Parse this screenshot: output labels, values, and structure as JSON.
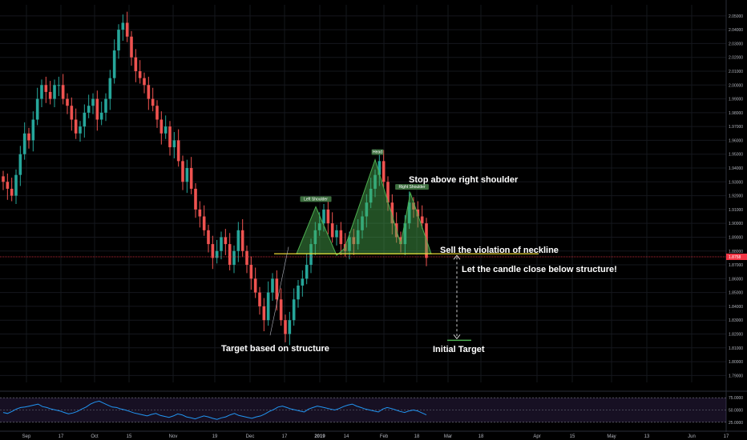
{
  "chart_data": {
    "type": "candlestick",
    "title": "",
    "price_axis": {
      "ylim": [
        1.785,
        2.058
      ],
      "ticks": [
        "2.05000",
        "2.04000",
        "2.03000",
        "2.02000",
        "2.01000",
        "2.00000",
        "1.99000",
        "1.98000",
        "1.97000",
        "1.96000",
        "1.95000",
        "1.94000",
        "1.93000",
        "1.92000",
        "1.91000",
        "1.90000",
        "1.89000",
        "1.88000",
        "1.87000",
        "1.86000",
        "1.85000",
        "1.84000",
        "1.83000",
        "1.82000",
        "1.81000",
        "1.80000",
        "1.79000"
      ],
      "last_price_label": "1.8758",
      "last_price": 1.8758
    },
    "time_axis": {
      "ticks": [
        "Sep",
        "17",
        "Oct",
        "15",
        "Nov",
        "19",
        "Dec",
        "17",
        "2019",
        "14",
        "Feb",
        "18",
        "Mar",
        "18",
        "Apr",
        "15",
        "May",
        "13",
        "Jun",
        "17"
      ]
    },
    "ohlc_close_path": [
      1.93,
      1.925,
      1.92,
      1.935,
      1.95,
      1.965,
      1.96,
      1.975,
      1.99,
      2.0,
      1.995,
      1.99,
      2.0,
      2.0,
      1.99,
      1.985,
      1.975,
      1.965,
      1.97,
      1.98,
      1.985,
      1.99,
      1.975,
      1.98,
      1.99,
      2.005,
      2.025,
      2.04,
      2.045,
      2.035,
      2.02,
      2.01,
      2.005,
      2.0,
      1.99,
      1.985,
      1.975,
      1.965,
      1.97,
      1.955,
      1.96,
      1.945,
      1.93,
      1.94,
      1.925,
      1.91,
      1.905,
      1.895,
      1.885,
      1.875,
      1.88,
      1.89,
      1.885,
      1.87,
      1.88,
      1.895,
      1.88,
      1.87,
      1.86,
      1.85,
      1.84,
      1.83,
      1.85,
      1.86,
      1.845,
      1.83,
      1.82,
      1.83,
      1.845,
      1.855,
      1.86,
      1.87,
      1.885,
      1.895,
      1.9,
      1.91,
      1.9,
      1.89,
      1.895,
      1.885,
      1.88,
      1.89,
      1.885,
      1.895,
      1.905,
      1.915,
      1.925,
      1.935,
      1.945,
      1.93,
      1.915,
      1.9,
      1.89,
      1.885,
      1.9,
      1.915,
      1.91,
      1.905,
      1.9,
      1.875
    ],
    "pattern": {
      "name": "head and shoulders",
      "labels": {
        "left_shoulder": "Left Shoulder",
        "head": "Head",
        "right_shoulder": "Right Shoulder"
      },
      "neckline": 1.878,
      "left_shoulder_price": 1.912,
      "head_price": 1.946,
      "right_shoulder_price": 1.922,
      "target_price": 1.816
    },
    "annotations": {
      "stop": "Stop above right shoulder",
      "sell": "Sell the violation of neckline",
      "close": "Let the candle close below structure!",
      "target_structure": "Target based on structure",
      "initial_target": "Initial Target"
    },
    "rsi": {
      "ticks": [
        "75.0000",
        "50.0000",
        "25.0000"
      ],
      "levels": [
        75,
        50,
        25
      ],
      "values": [
        45,
        43,
        47,
        52,
        55,
        56,
        58,
        60,
        62,
        57,
        55,
        52,
        50,
        48,
        45,
        42,
        44,
        47,
        52,
        56,
        62,
        66,
        68,
        64,
        60,
        56,
        55,
        52,
        50,
        47,
        44,
        42,
        40,
        38,
        41,
        43,
        39,
        37,
        35,
        38,
        42,
        40,
        36,
        34,
        32,
        35,
        38,
        36,
        33,
        31,
        34,
        36,
        40,
        43,
        39,
        37,
        35,
        33,
        36,
        38,
        42,
        47,
        51,
        56,
        58,
        55,
        52,
        50,
        48,
        46,
        52,
        55,
        58,
        56,
        54,
        52,
        50,
        53,
        57,
        60,
        62,
        58,
        55,
        52,
        50,
        48,
        46,
        52,
        55,
        53,
        50,
        47,
        45,
        48,
        50,
        48,
        44,
        40
      ]
    },
    "colors": {
      "up": "#26a69a",
      "down": "#ef5350",
      "pattern_fill": "#4caf50",
      "neckline": "#ffeb3b",
      "price_line": "#f23645",
      "rsi_line": "#2196f3",
      "rsi_band": "#7e57c2"
    }
  }
}
